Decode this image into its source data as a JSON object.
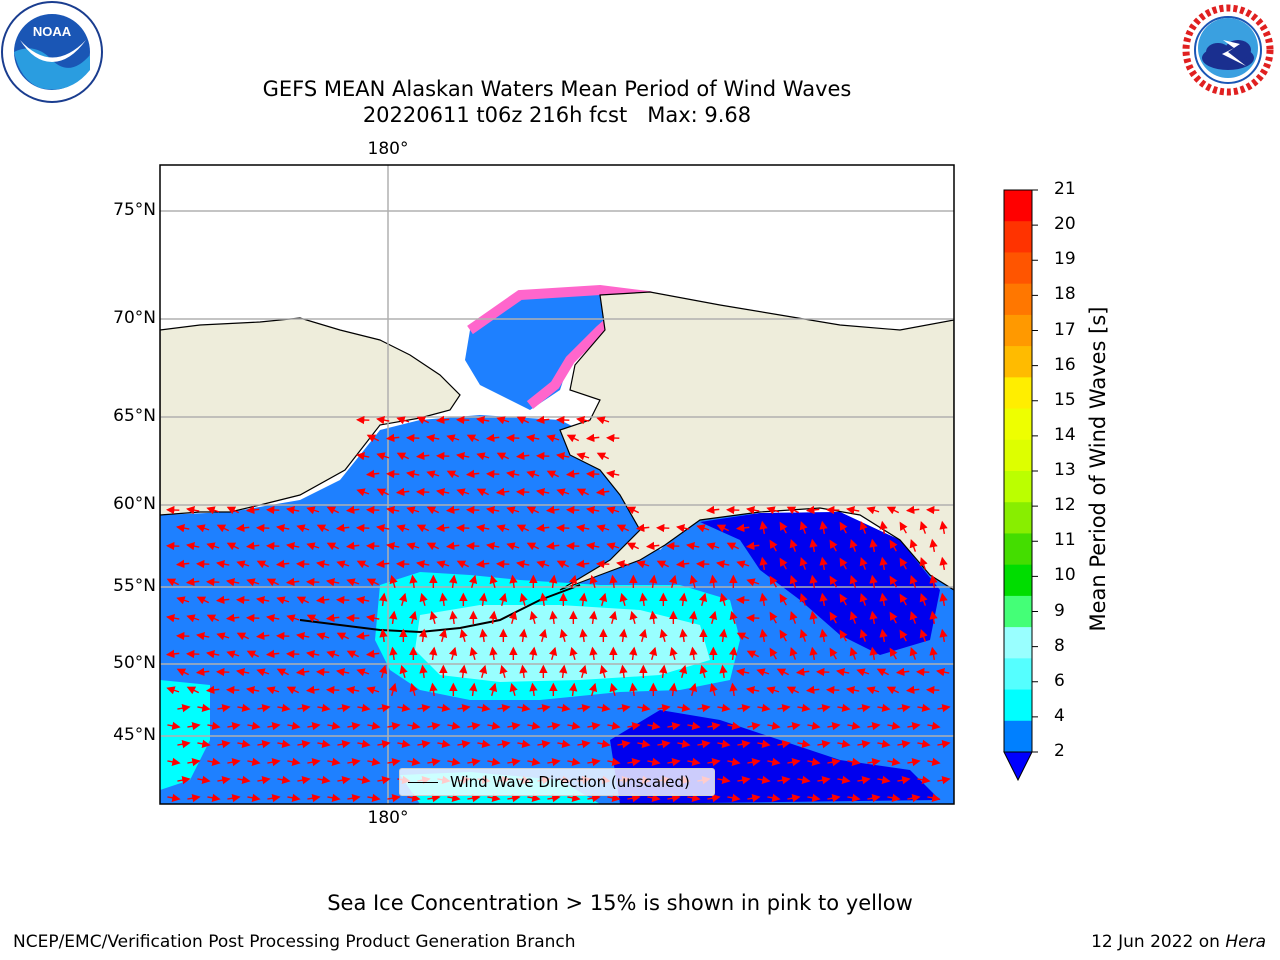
{
  "title": {
    "line1": "GEFS MEAN Alaskan Waters Mean Period of Wind Waves",
    "line2": "20220611 t06z 216h fcst   Max: 9.68"
  },
  "axes": {
    "lat_labels": [
      "75°N",
      "70°N",
      "65°N",
      "60°N",
      "55°N",
      "50°N",
      "45°N"
    ],
    "lon_top": "180°",
    "lon_bottom": "180°"
  },
  "legend": {
    "label": "Wind Wave Direction (unscaled)"
  },
  "colorbar": {
    "title": "Mean Period of Wind Waves [s]",
    "ticks": [
      "21",
      "20",
      "19",
      "18",
      "17",
      "16",
      "15",
      "14",
      "13",
      "12",
      "11",
      "10",
      "9",
      "8",
      "6",
      "4",
      "2"
    ],
    "colors": [
      "#ff0000",
      "#ff3300",
      "#ff5500",
      "#ff7700",
      "#ff9900",
      "#ffbb00",
      "#ffee00",
      "#eeff00",
      "#ddff00",
      "#bbff00",
      "#88ee00",
      "#44dd00",
      "#00dd00",
      "#44ff77",
      "#99ffff",
      "#55ffff",
      "#00ffff",
      "#0080ff"
    ],
    "under_color": "#0000ff"
  },
  "map_colors": {
    "land": "#eeeddb",
    "wave_2_4": "#1e80ff",
    "wave_under_2": "#0000ee",
    "wave_4_6": "#00ffff",
    "wave_6_8": "#99ffff",
    "sea_ice": "#ff66cc",
    "sea_ice_high": "#ffaa44",
    "arrows": "#ff0000",
    "grid": "#b0b0b0"
  },
  "note": "Sea Ice Concentration > 15% is shown in pink to yellow",
  "footer": {
    "left": "NCEP/EMC/Verification Post Processing Product Generation Branch",
    "right_prefix": "12 Jun 2022 on ",
    "right_machine": "Hera"
  },
  "logos": {
    "left": "NOAA",
    "right": "NATIONAL WEATHER SERVICE"
  }
}
